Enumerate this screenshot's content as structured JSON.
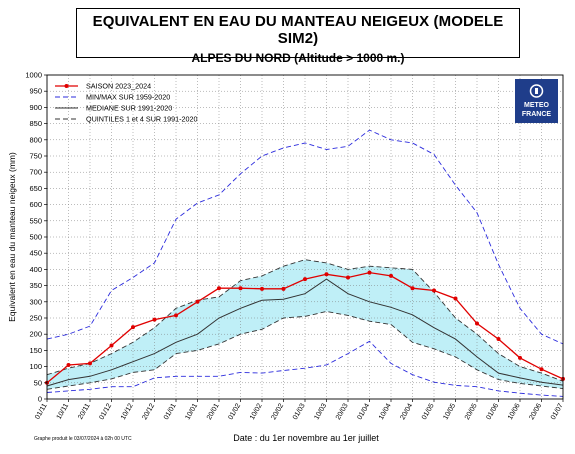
{
  "header": {
    "title": "EQUIVALENT EN EAU DU MANTEAU NEIGEUX (MODELE SIM2)",
    "subtitle": "ALPES DU NORD (Altitude > 1000 m.)"
  },
  "footer_note": "Graphe produit le 03/07/2024 à 02h 00 UTC",
  "logo": {
    "line1": "METEO",
    "line2": "FRANCE",
    "icon": "meteo-france-logo-icon",
    "color": "#1f3d8a"
  },
  "colors": {
    "season": "#e00000",
    "minmax": "#2b2bdd",
    "median": "#333333",
    "quintiles": "#333333",
    "band": "#bfeff7"
  },
  "chart_data": {
    "type": "line",
    "xlabel": "Date : du 1er novembre au 1er juillet",
    "ylabel": "Equivalent en eau du manteau neigeux (mm)",
    "ylim": [
      0,
      1000
    ],
    "yticks": [
      0,
      50,
      100,
      150,
      200,
      250,
      300,
      350,
      400,
      450,
      500,
      550,
      600,
      650,
      700,
      750,
      800,
      850,
      900,
      950,
      1000
    ],
    "categories": [
      "01/11",
      "10/11",
      "20/11",
      "01/12",
      "10/12",
      "20/12",
      "01/01",
      "10/01",
      "20/01",
      "01/02",
      "10/02",
      "20/02",
      "01/03",
      "10/03",
      "20/03",
      "01/04",
      "10/04",
      "20/04",
      "01/05",
      "10/05",
      "20/05",
      "01/06",
      "10/06",
      "20/06",
      "01/07"
    ],
    "legend_position": "top-left",
    "series": [
      {
        "name": "SAISON 2023_2024",
        "style": "season",
        "values": [
          50,
          105,
          110,
          165,
          222,
          245,
          258,
          300,
          342,
          342,
          340,
          340,
          370,
          385,
          375,
          390,
          380,
          342,
          335,
          310,
          233,
          185,
          127,
          92,
          62
        ]
      },
      {
        "name": "MIN/MAX SUR 1959-2020",
        "style": "minmax",
        "role": "max",
        "values": [
          185,
          200,
          225,
          335,
          375,
          420,
          555,
          605,
          630,
          695,
          750,
          775,
          790,
          770,
          780,
          830,
          800,
          790,
          755,
          660,
          575,
          415,
          280,
          200,
          170
        ]
      },
      {
        "name": "",
        "style": "minmax",
        "role": "min",
        "values": [
          20,
          25,
          30,
          38,
          38,
          65,
          70,
          70,
          70,
          82,
          80,
          88,
          95,
          105,
          140,
          178,
          110,
          75,
          52,
          42,
          38,
          25,
          18,
          12,
          8
        ]
      },
      {
        "name": "MEDIANE SUR 1991-2020",
        "style": "median",
        "values": [
          40,
          60,
          70,
          90,
          115,
          140,
          175,
          200,
          250,
          280,
          305,
          308,
          325,
          370,
          325,
          300,
          283,
          260,
          220,
          185,
          130,
          80,
          65,
          52,
          43
        ]
      },
      {
        "name": "QUINTILES 1 et 4 SUR 1991-2020",
        "style": "quintiles",
        "role": "upper",
        "values": [
          75,
          95,
          110,
          140,
          175,
          220,
          280,
          305,
          315,
          365,
          380,
          410,
          430,
          420,
          400,
          410,
          405,
          400,
          330,
          250,
          200,
          140,
          100,
          80,
          55
        ]
      },
      {
        "name": "",
        "style": "quintiles",
        "role": "lower",
        "values": [
          30,
          40,
          50,
          62,
          82,
          90,
          140,
          150,
          170,
          200,
          215,
          250,
          255,
          270,
          258,
          240,
          230,
          175,
          155,
          130,
          90,
          60,
          48,
          40,
          32
        ]
      }
    ]
  }
}
